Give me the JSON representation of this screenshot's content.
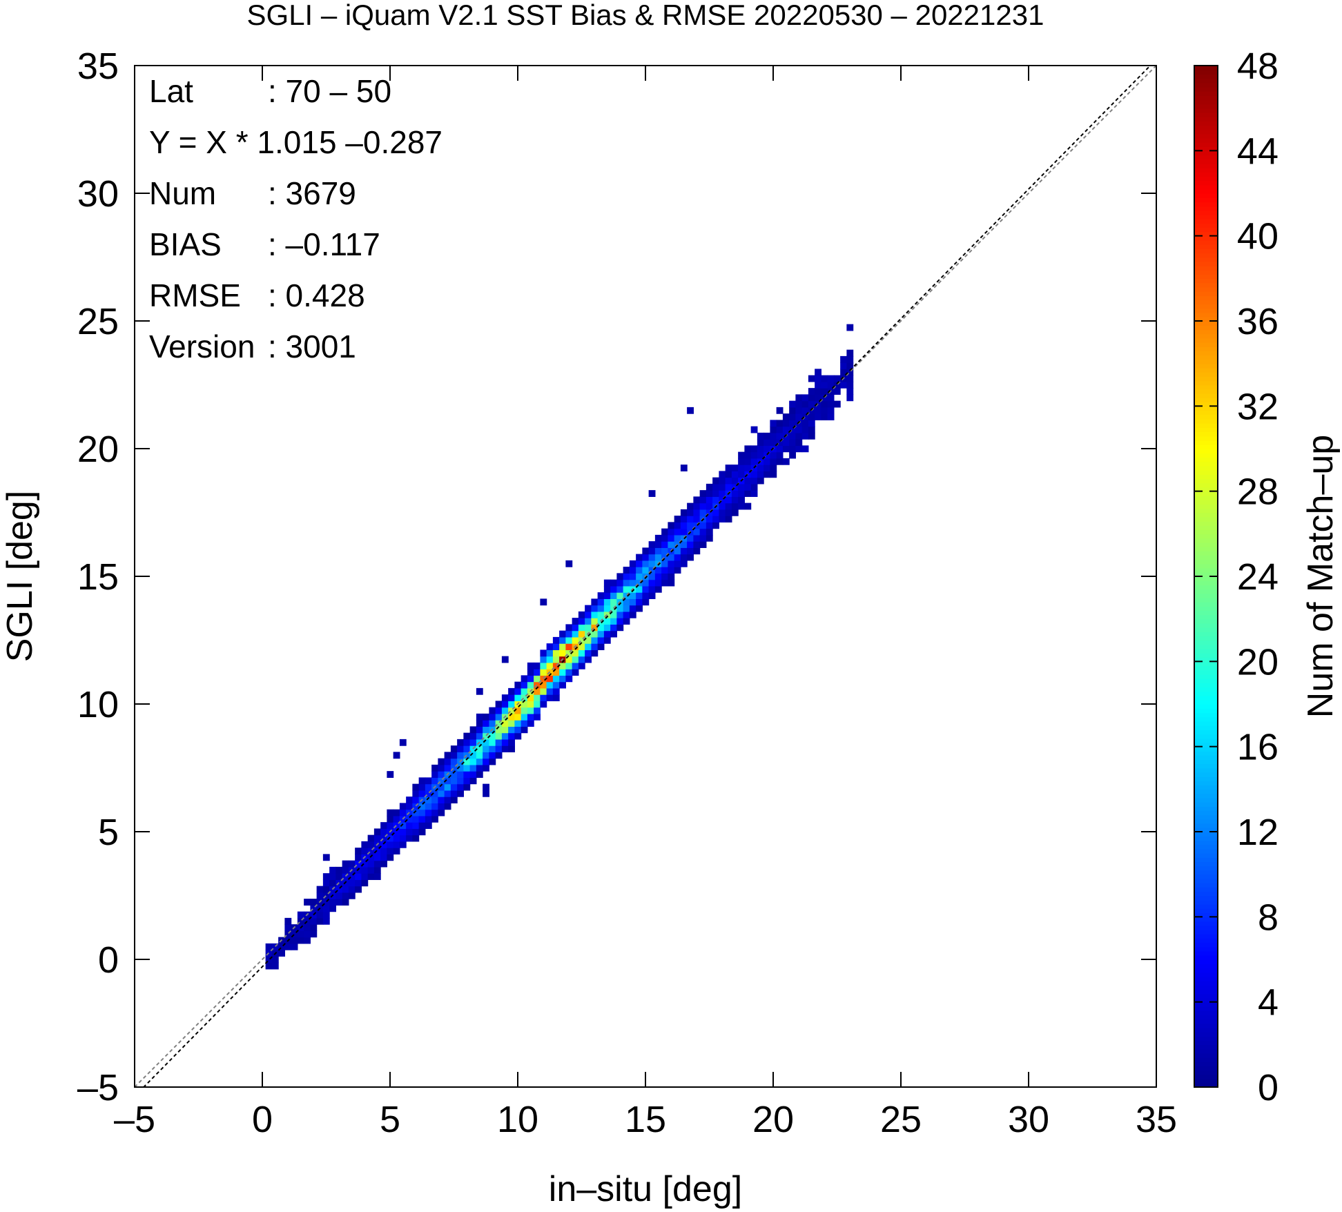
{
  "chart_data": {
    "type": "heatmap",
    "title": "SGLI – iQuam V2.1 SST Bias & RMSE 20220530 – 20221231",
    "xlabel": "in–situ [deg]",
    "ylabel": "SGLI [deg]",
    "xlim": [
      -5,
      35
    ],
    "ylim": [
      -5,
      35
    ],
    "xticks": [
      "–5",
      "0",
      "5",
      "10",
      "15",
      "20",
      "25",
      "30",
      "35"
    ],
    "yticks": [
      "–5",
      "0",
      "5",
      "10",
      "15",
      "20",
      "25",
      "30",
      "35"
    ],
    "grid": false,
    "bin_size_deg": 0.25,
    "reference_lines": [
      {
        "name": "one-to-one",
        "slope": 1.0,
        "intercept": 0.0,
        "style": "dashed",
        "color": "#808080"
      },
      {
        "name": "regression",
        "slope": 1.015,
        "intercept": -0.287,
        "style": "dashed",
        "color": "#000000"
      }
    ],
    "stats": [
      {
        "label": "Lat",
        "value": ": 70 – 50"
      },
      {
        "label": "Y = X * 1.015 –0.287",
        "value": ""
      },
      {
        "label": "Num",
        "value": ": 3679"
      },
      {
        "label": "BIAS",
        "value": ": –0.117"
      },
      {
        "label": "RMSE",
        "value": ": 0.428"
      },
      {
        "label": "Version",
        "value": ": 3001"
      }
    ],
    "colorbar": {
      "label": "Num of Match–up",
      "range": [
        0,
        48
      ],
      "ticks": [
        "0",
        "4",
        "8",
        "12",
        "16",
        "20",
        "24",
        "28",
        "32",
        "36",
        "40",
        "44",
        "48"
      ],
      "colors": [
        "#00008f",
        "#0000ff",
        "#0080ff",
        "#00ffff",
        "#80ff80",
        "#ffff00",
        "#ff8000",
        "#ff0000",
        "#800000"
      ]
    },
    "density_profile": [
      {
        "x": 0.5,
        "count": 1,
        "spread": 0.25
      },
      {
        "x": 1.5,
        "count": 2,
        "spread": 0.3
      },
      {
        "x": 2.5,
        "count": 3,
        "spread": 0.35
      },
      {
        "x": 3.5,
        "count": 5,
        "spread": 0.4
      },
      {
        "x": 4.5,
        "count": 6,
        "spread": 0.4
      },
      {
        "x": 5.5,
        "count": 8,
        "spread": 0.45
      },
      {
        "x": 6.5,
        "count": 11,
        "spread": 0.45
      },
      {
        "x": 7.5,
        "count": 13,
        "spread": 0.45
      },
      {
        "x": 8.5,
        "count": 18,
        "spread": 0.45
      },
      {
        "x": 9.5,
        "count": 24,
        "spread": 0.45
      },
      {
        "x": 10.5,
        "count": 34,
        "spread": 0.45
      },
      {
        "x": 11.5,
        "count": 42,
        "spread": 0.45
      },
      {
        "x": 12.5,
        "count": 30,
        "spread": 0.45
      },
      {
        "x": 13.5,
        "count": 24,
        "spread": 0.45
      },
      {
        "x": 14.5,
        "count": 16,
        "spread": 0.5
      },
      {
        "x": 15.5,
        "count": 12,
        "spread": 0.5
      },
      {
        "x": 16.5,
        "count": 9,
        "spread": 0.5
      },
      {
        "x": 17.5,
        "count": 7,
        "spread": 0.5
      },
      {
        "x": 18.5,
        "count": 5,
        "spread": 0.5
      },
      {
        "x": 19.5,
        "count": 4,
        "spread": 0.5
      },
      {
        "x": 20.5,
        "count": 3,
        "spread": 0.5
      },
      {
        "x": 21.5,
        "count": 2,
        "spread": 0.5
      },
      {
        "x": 22.5,
        "count": 1,
        "spread": 0.4
      }
    ],
    "outliers": [
      {
        "x": 23.1,
        "y": 24.8
      },
      {
        "x": 16.8,
        "y": 21.4
      },
      {
        "x": 12.1,
        "y": 15.5
      },
      {
        "x": 11.0,
        "y": 14.0
      },
      {
        "x": 9.5,
        "y": 11.7
      },
      {
        "x": 8.6,
        "y": 10.5
      },
      {
        "x": 5.4,
        "y": 8.5
      },
      {
        "x": 5.2,
        "y": 8.0
      },
      {
        "x": 5.0,
        "y": 7.2
      },
      {
        "x": 8.8,
        "y": 6.7
      },
      {
        "x": 8.7,
        "y": 6.5
      },
      {
        "x": 2.6,
        "y": 3.9
      },
      {
        "x": 4.5,
        "y": 3.2
      },
      {
        "x": 16.5,
        "y": 19.3
      },
      {
        "x": 15.3,
        "y": 18.2
      },
      {
        "x": 20.5,
        "y": 20.4
      }
    ]
  }
}
